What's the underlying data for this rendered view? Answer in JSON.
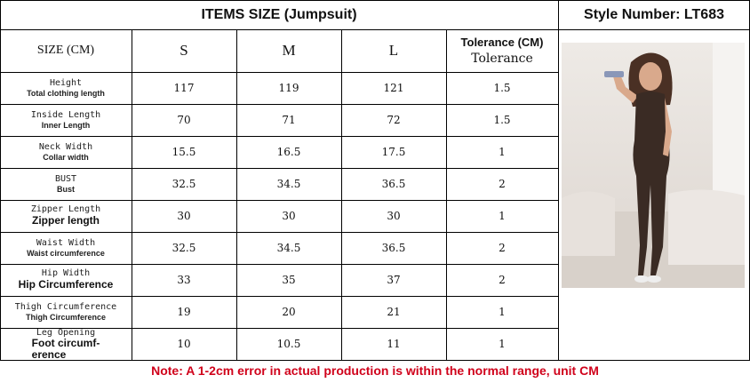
{
  "header": {
    "title": "ITEMS SIZE (Jumpsuit)",
    "style_number": "Style Number: LT683"
  },
  "columns": {
    "size": "SIZE (CM)",
    "s": "S",
    "m": "M",
    "l": "L",
    "tolerance": "Tolerance (CM)",
    "tolerance_sub": "Tolerance"
  },
  "rows": [
    {
      "label": "Height",
      "sub": "Total clothing length",
      "s": "117",
      "m": "119",
      "l": "121",
      "tol": "1.5"
    },
    {
      "label": "Inside Length",
      "sub": "Inner Length",
      "s": "70",
      "m": "71",
      "l": "72",
      "tol": "1.5"
    },
    {
      "label": "Neck Width",
      "sub": "Collar width",
      "s": "15.5",
      "m": "16.5",
      "l": "17.5",
      "tol": "1"
    },
    {
      "label": "BUST",
      "sub": "Bust",
      "s": "32.5",
      "m": "34.5",
      "l": "36.5",
      "tol": "2"
    },
    {
      "label": "Zipper Length",
      "sub": "Zipper length",
      "s": "30",
      "m": "30",
      "l": "30",
      "tol": "1"
    },
    {
      "label": "Waist Width",
      "sub": "Waist circumference",
      "s": "32.5",
      "m": "34.5",
      "l": "36.5",
      "tol": "2"
    },
    {
      "label": "Hip Width",
      "sub": "Hip Circumference",
      "s": "33",
      "m": "35",
      "l": "37",
      "tol": "2"
    },
    {
      "label": "Thigh Circumference",
      "sub": "Thigh Circumference",
      "s": "19",
      "m": "20",
      "l": "21",
      "tol": "1"
    },
    {
      "label": "Leg Opening",
      "sub": "Foot circumf-\nerence",
      "s": "10",
      "m": "10.5",
      "l": "11",
      "tol": "1"
    }
  ],
  "note": "Note: A 1-2cm error in actual production is within the normal range, unit CM",
  "colors": {
    "note": "#d0021b",
    "garment": "#3a2b24"
  }
}
